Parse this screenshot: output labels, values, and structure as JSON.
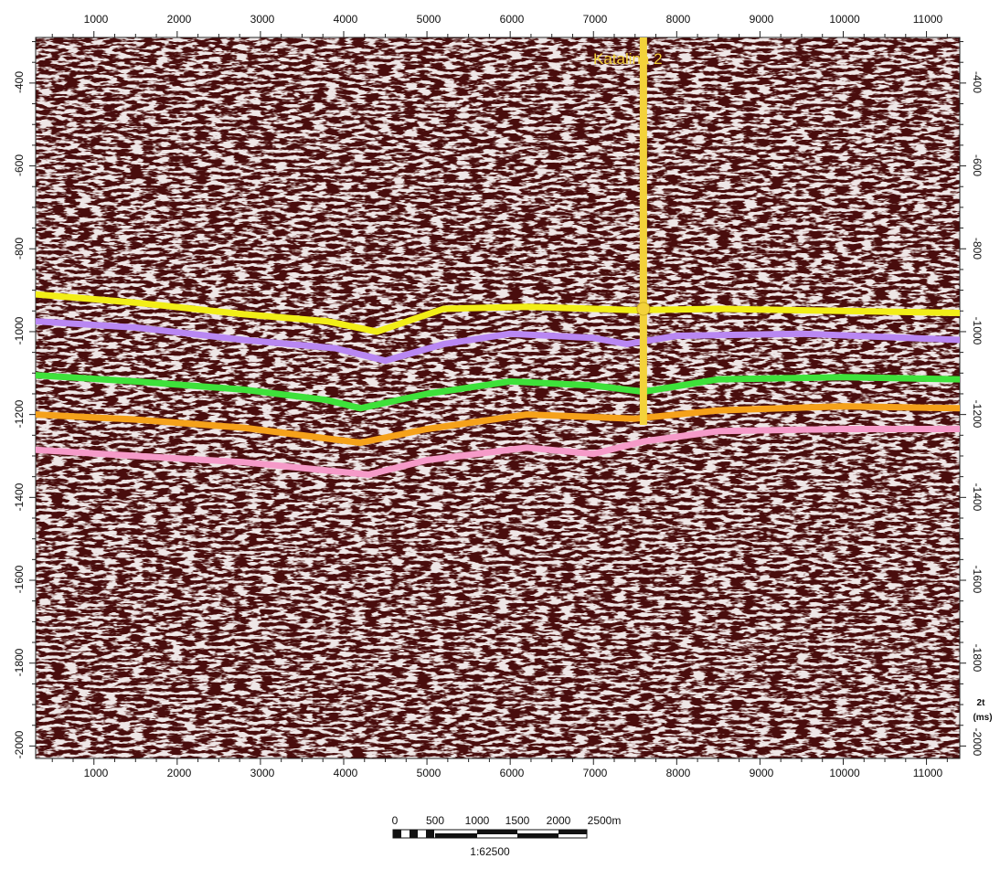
{
  "section": {
    "x_ticks": [
      "1000",
      "2000",
      "3000",
      "4000",
      "5000",
      "6000",
      "7000",
      "8000",
      "9000",
      "10000",
      "11000"
    ],
    "y_ticks": [
      "-400",
      "-600",
      "-800",
      "-1000",
      "-1200",
      "-1400",
      "-1600",
      "-1800",
      "-2000"
    ],
    "right_axis_unit_line1": "2t",
    "right_axis_unit_line2": "(ms)"
  },
  "well": {
    "name": "Katalina 2",
    "color": "#f3d23a"
  },
  "horizons_colors": [
    "#f2ee17",
    "#b987f2",
    "#3ee13a",
    "#f5a11a",
    "#f59ac8"
  ],
  "scale_bar": {
    "labels": [
      "0",
      "500",
      "1000",
      "1500",
      "2000",
      "2500m"
    ],
    "ratio": "1:62500"
  },
  "chart_data": {
    "type": "line",
    "title": "",
    "xlabel": "",
    "ylabel": "2t (ms)",
    "xlim": [
      300,
      11400
    ],
    "ylim": [
      -2030,
      -290
    ],
    "grid": false,
    "series": [
      {
        "color": "#f2ee17",
        "x": [
          300,
          1500,
          2800,
          3800,
          4400,
          5200,
          6200,
          7500,
          8500,
          10000,
          11400
        ],
        "y": [
          -910,
          -930,
          -958,
          -975,
          -1000,
          -945,
          -940,
          -948,
          -945,
          -950,
          -955
        ]
      },
      {
        "color": "#b987f2",
        "x": [
          300,
          1500,
          2800,
          3900,
          4500,
          5200,
          6000,
          7000,
          7400,
          8000,
          9500,
          11400
        ],
        "y": [
          -975,
          -990,
          -1020,
          -1040,
          -1070,
          -1030,
          -1005,
          -1015,
          -1030,
          -1010,
          -1005,
          -1020
        ]
      },
      {
        "color": "#3ee13a",
        "x": [
          300,
          1500,
          2800,
          3800,
          4200,
          5000,
          6000,
          7000,
          7600,
          8500,
          10000,
          11400
        ],
        "y": [
          -1105,
          -1120,
          -1140,
          -1165,
          -1185,
          -1150,
          -1120,
          -1130,
          -1145,
          -1115,
          -1110,
          -1115
        ]
      },
      {
        "color": "#f5a11a",
        "x": [
          300,
          1500,
          2800,
          3800,
          4200,
          5000,
          6200,
          7500,
          8500,
          10000,
          11400
        ],
        "y": [
          -1200,
          -1212,
          -1232,
          -1258,
          -1268,
          -1235,
          -1200,
          -1210,
          -1190,
          -1180,
          -1185
        ]
      },
      {
        "color": "#f59ac8",
        "x": [
          300,
          1500,
          2800,
          3800,
          4300,
          5000,
          6200,
          7000,
          7600,
          8500,
          10000,
          11400
        ],
        "y": [
          -1285,
          -1300,
          -1315,
          -1335,
          -1345,
          -1310,
          -1280,
          -1295,
          -1265,
          -1240,
          -1235,
          -1235
        ]
      }
    ],
    "well_marker": {
      "x": 7600,
      "y_top": -290,
      "y_bottom": -1225,
      "pick_y": -945
    }
  }
}
